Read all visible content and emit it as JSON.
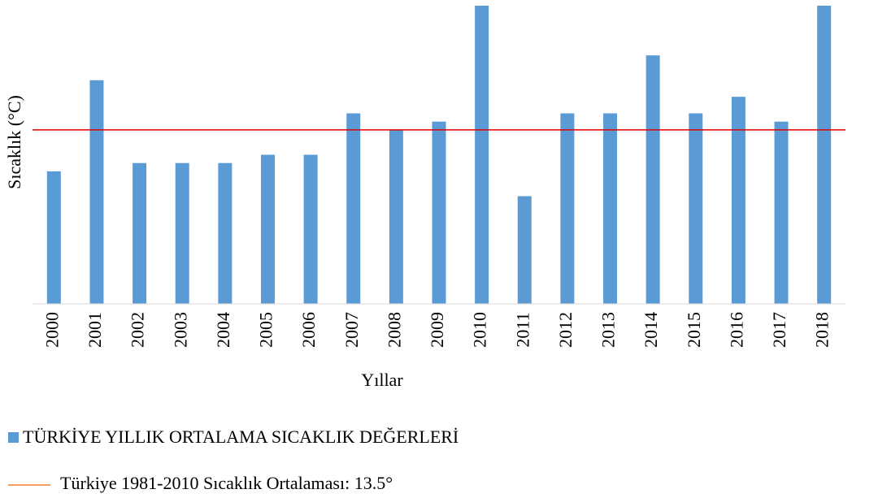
{
  "chart_data": {
    "type": "bar",
    "x_label": "Yıllar",
    "y_label": "Sıcaklık (°C)",
    "categories": [
      "2000",
      "2001",
      "2002",
      "2003",
      "2004",
      "2005",
      "2006",
      "2007",
      "2008",
      "2009",
      "2010",
      "2011",
      "2012",
      "2013",
      "2014",
      "2015",
      "2016",
      "2017",
      "2018"
    ],
    "series": [
      {
        "name": "TÜRKİYE YILLIK ORTALAMA SICAKLIK DEĞERLERİ",
        "color": "#5b9bd5",
        "values": [
          13.0,
          14.1,
          13.1,
          13.1,
          13.1,
          13.2,
          13.2,
          13.7,
          13.5,
          13.6,
          15.0,
          12.7,
          13.7,
          13.7,
          14.4,
          13.7,
          13.9,
          13.6,
          15.0
        ]
      }
    ],
    "ylim": [
      11.4,
      15.0
    ],
    "reference_line": {
      "value": 13.5,
      "label": "Türkiye 1981-2010 Sıcaklık Ortalaması: 13.5°",
      "color": "#e00000",
      "legend_color": "#ed7d31"
    }
  }
}
